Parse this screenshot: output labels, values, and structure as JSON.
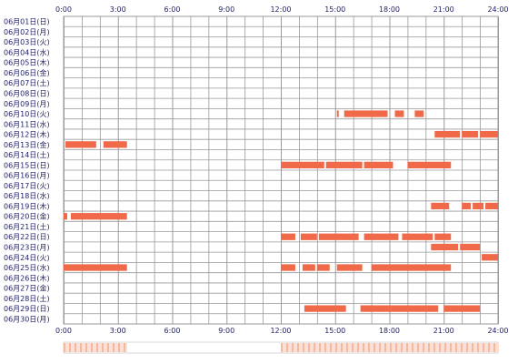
{
  "chart_data": {
    "type": "heatmap",
    "title": "",
    "xlabel": "",
    "ylabel": "",
    "x_ticks": [
      "0:00",
      "3:00",
      "6:00",
      "9:00",
      "12:00",
      "15:00",
      "18:00",
      "21:00",
      "24:00"
    ],
    "xlim": [
      0,
      24
    ],
    "grid": true,
    "colors": {
      "activity": "#f06a4a",
      "gap": "#ffffff",
      "grid": "#9a9a9a",
      "label": "#222266",
      "summary_low": "#fde0d6",
      "summary_high": "#f7b8a0"
    },
    "days": [
      {
        "label": "06月01日(日)",
        "segments": []
      },
      {
        "label": "06月02日(月)",
        "segments": []
      },
      {
        "label": "06月03日(火)",
        "segments": []
      },
      {
        "label": "06月04日(水)",
        "segments": []
      },
      {
        "label": "06月05日(木)",
        "segments": []
      },
      {
        "label": "06月06日(金)",
        "segments": []
      },
      {
        "label": "06月07日(土)",
        "segments": []
      },
      {
        "label": "06月08日(日)",
        "segments": []
      },
      {
        "label": "06月09日(月)",
        "segments": []
      },
      {
        "label": "06月10日(火)",
        "segments": [
          [
            15.1,
            15.2
          ],
          [
            15.5,
            17.9
          ],
          [
            18.3,
            18.8
          ],
          [
            19.4,
            19.9
          ]
        ]
      },
      {
        "label": "06月11日(水)",
        "segments": []
      },
      {
        "label": "06月12日(木)",
        "segments": [
          [
            20.5,
            21.9
          ],
          [
            22.0,
            22.9
          ],
          [
            23.0,
            24.0
          ]
        ]
      },
      {
        "label": "06月13日(金)",
        "segments": [
          [
            0.1,
            1.8
          ],
          [
            2.2,
            3.5
          ]
        ]
      },
      {
        "label": "06月14日(土)",
        "segments": []
      },
      {
        "label": "06月15日(日)",
        "segments": [
          [
            12.0,
            14.4
          ],
          [
            14.5,
            16.5
          ],
          [
            16.6,
            18.2
          ],
          [
            19.0,
            21.4
          ]
        ]
      },
      {
        "label": "06月16日(月)",
        "segments": []
      },
      {
        "label": "06月17日(火)",
        "segments": []
      },
      {
        "label": "06月18日(水)",
        "segments": []
      },
      {
        "label": "06月19日(木)",
        "segments": [
          [
            20.3,
            21.3
          ],
          [
            22.0,
            22.5
          ],
          [
            22.6,
            23.2
          ],
          [
            23.3,
            24.0
          ]
        ]
      },
      {
        "label": "06月20日(金)",
        "segments": [
          [
            0.0,
            0.2
          ],
          [
            0.4,
            3.5
          ]
        ]
      },
      {
        "label": "06月21日(土)",
        "segments": []
      },
      {
        "label": "06月22日(日)",
        "segments": [
          [
            12.0,
            12.8
          ],
          [
            13.1,
            14.0
          ],
          [
            14.1,
            16.3
          ],
          [
            16.6,
            18.5
          ],
          [
            18.7,
            20.4
          ],
          [
            20.5,
            21.4
          ]
        ]
      },
      {
        "label": "06月23日(月)",
        "segments": [
          [
            20.3,
            21.8
          ],
          [
            21.9,
            23.0
          ]
        ]
      },
      {
        "label": "06月24日(火)",
        "segments": [
          [
            23.1,
            24.0
          ]
        ]
      },
      {
        "label": "06月25日(水)",
        "segments": [
          [
            0.0,
            3.5
          ],
          [
            12.0,
            12.8
          ],
          [
            13.2,
            13.9
          ],
          [
            14.0,
            14.7
          ],
          [
            15.1,
            16.5
          ],
          [
            17.0,
            21.4
          ]
        ]
      },
      {
        "label": "06月26日(木)",
        "segments": []
      },
      {
        "label": "06月27日(金)",
        "segments": []
      },
      {
        "label": "06月28日(土)",
        "segments": []
      },
      {
        "label": "06月29日(日)",
        "segments": [
          [
            13.3,
            15.6
          ],
          [
            16.4,
            20.7
          ],
          [
            21.0,
            23.0
          ]
        ]
      },
      {
        "label": "06月30日(月)",
        "segments": []
      }
    ],
    "summary": [
      {
        "range": [
          0.0,
          3.5
        ],
        "level": "high"
      },
      {
        "range": [
          3.5,
          12.0
        ],
        "level": "none"
      },
      {
        "range": [
          12.0,
          24.0
        ],
        "level": "high"
      }
    ]
  }
}
